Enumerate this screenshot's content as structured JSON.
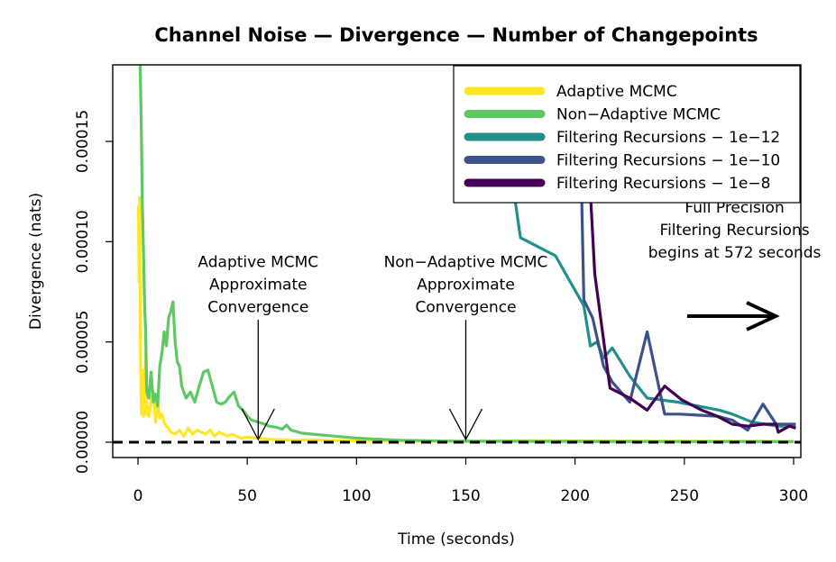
{
  "chart_data": {
    "type": "line",
    "title": "Channel Noise — Divergence — Number of Changepoints",
    "xlabel": "Time (seconds)",
    "ylabel": "Divergence (nats)",
    "xlim": [
      -11,
      301
    ],
    "ylim": [
      -7e-06,
      0.000188
    ],
    "x_ticks": [
      0,
      50,
      100,
      150,
      200,
      250,
      300
    ],
    "x_tick_labels": [
      "0",
      "50",
      "100",
      "150",
      "200",
      "250",
      "300"
    ],
    "y_ticks": [
      0,
      5e-05,
      0.0001,
      0.00015
    ],
    "y_tick_labels": [
      "0.00000",
      "0.00005",
      "0.00010",
      "0.00015"
    ],
    "grid": false,
    "legend_position": "top-right",
    "reference_line": {
      "y": 0,
      "style": "dashed"
    },
    "series": [
      {
        "name": "Adaptive MCMC",
        "color": "#FDE725",
        "x": [
          0.2,
          0.5,
          0.8,
          1,
          1.3,
          1.6,
          2,
          2.5,
          3,
          3.5,
          4,
          4.5,
          5,
          5.5,
          6,
          7,
          8,
          9,
          10,
          11,
          12,
          13,
          14,
          15,
          17,
          19,
          21,
          23,
          25,
          27,
          29,
          31,
          33,
          35,
          37,
          39,
          41,
          43,
          45,
          47,
          50,
          55,
          60,
          70,
          80,
          90,
          100,
          120,
          150,
          180,
          210,
          240,
          270,
          300
        ],
        "y": [
          0.000118,
          8e-05,
          0.000122,
          6.4e-05,
          2.8e-05,
          1.4e-05,
          3.6e-05,
          1.3e-05,
          2e-05,
          4.5e-05,
          1.4e-05,
          1.8e-05,
          1.3e-05,
          1.6e-05,
          2.2e-05,
          2.5e-05,
          1e-05,
          2e-05,
          1.2e-05,
          1.4e-05,
          1e-05,
          8e-06,
          7e-06,
          5e-06,
          4e-06,
          6e-06,
          3e-06,
          7e-06,
          4e-06,
          6e-06,
          5e-06,
          4e-06,
          6e-06,
          3e-06,
          5e-06,
          4e-06,
          3e-06,
          4e-06,
          3e-06,
          2e-06,
          2.5e-06,
          2e-06,
          1.5e-06,
          1e-06,
          1.2e-06,
          8e-07,
          6e-07,
          5e-07,
          4e-07,
          8e-07,
          6e-07,
          5e-07,
          5e-07,
          4e-07
        ]
      },
      {
        "name": "Non−Adaptive MCMC",
        "color": "#5EC962",
        "x": [
          1,
          1.5,
          2,
          2.5,
          3,
          3.5,
          4,
          5,
          6,
          7,
          8,
          9,
          10,
          11,
          12,
          13,
          14,
          15,
          16,
          17,
          18,
          19,
          20,
          22,
          24,
          26,
          28,
          30,
          32,
          34,
          36,
          38,
          40,
          42,
          44,
          46,
          48,
          50,
          52,
          55,
          58,
          60,
          63,
          66,
          68,
          70,
          75,
          80,
          85,
          90,
          95,
          100,
          110,
          120,
          130,
          140,
          150,
          200,
          250,
          300
        ],
        "y": [
          0.000188,
          0.00016,
          0.00012,
          9.5e-05,
          7e-05,
          5.5e-05,
          2.5e-05,
          2.2e-05,
          3.5e-05,
          2e-05,
          2.4e-05,
          1.8e-05,
          3.8e-05,
          4.5e-05,
          5.5e-05,
          4.8e-05,
          6.2e-05,
          6.5e-05,
          7e-05,
          5e-05,
          4e-05,
          3.8e-05,
          2.8e-05,
          2.2e-05,
          2.5e-05,
          2e-05,
          2.8e-05,
          3.5e-05,
          3.6e-05,
          2.8e-05,
          2e-05,
          1.9e-05,
          2e-05,
          2.3e-05,
          2.5e-05,
          1.8e-05,
          1.6e-05,
          1.3e-05,
          1.1e-05,
          1e-05,
          9e-06,
          8e-06,
          7.5e-06,
          6.5e-06,
          8.5e-06,
          6e-06,
          4.5e-06,
          4e-06,
          3.5e-06,
          3e-06,
          2.5e-06,
          2e-06,
          1.5e-06,
          1e-06,
          8e-07,
          6e-07,
          5e-07,
          4e-07,
          3e-07,
          3e-07
        ]
      },
      {
        "name": "Filtering Recursions − 1e−12",
        "color": "#21908C",
        "x": [
          172,
          175,
          191,
          204,
          207,
          210,
          213,
          217,
          225,
          233,
          247,
          266,
          272,
          281,
          287,
          293,
          301
        ],
        "y": [
          0.000125,
          0.000102,
          9.3e-05,
          6.8e-05,
          4.8e-05,
          5e-05,
          4.2e-05,
          4.7e-05,
          3.3e-05,
          2.2e-05,
          2e-05,
          1.6e-05,
          1.4e-05,
          1e-05,
          9e-06,
          8e-06,
          8e-06
        ]
      },
      {
        "name": "Filtering Recursions − 1e−10",
        "color": "#3B528B",
        "x": [
          203,
          204,
          208,
          213,
          217,
          225,
          233,
          241,
          248,
          265,
          272,
          279,
          286,
          292,
          301
        ],
        "y": [
          0.000125,
          7.1e-05,
          6.2e-05,
          3.8e-05,
          3e-05,
          2e-05,
          5.5e-05,
          1.4e-05,
          1.4e-05,
          1.3e-05,
          1.1e-05,
          6e-06,
          1.9e-05,
          9e-06,
          9e-06
        ]
      },
      {
        "name": "Filtering Recursions − 1e−8",
        "color": "#440154",
        "x": [
          207,
          209,
          216,
          225,
          233,
          241,
          249,
          258,
          265,
          272,
          279,
          286,
          292,
          293,
          298,
          301
        ],
        "y": [
          0.000125,
          8.4e-05,
          2.7e-05,
          2.2e-05,
          1.6e-05,
          2.8e-05,
          2.1e-05,
          1.6e-05,
          1.3e-05,
          9e-06,
          8e-06,
          9e-06,
          9e-06,
          5e-06,
          8e-06,
          7e-06
        ]
      }
    ],
    "annotations": [
      {
        "lines": [
          "Adaptive MCMC",
          "Approximate",
          "Convergence"
        ],
        "x": 55,
        "y": 6.5e-05,
        "arrow_to": [
          55,
          0
        ],
        "arrow_from_y": 6.1e-05
      },
      {
        "lines": [
          "Non−Adaptive MCMC",
          "Approximate",
          "Convergence"
        ],
        "x": 150,
        "y": 6.5e-05,
        "arrow_to": [
          150,
          0
        ],
        "arrow_from_y": 6.1e-05
      },
      {
        "lines": [
          "Full Precision",
          "Filtering Recursions",
          "begins at 572 seconds"
        ],
        "x": 273,
        "y": 9.2e-05
      }
    ]
  }
}
